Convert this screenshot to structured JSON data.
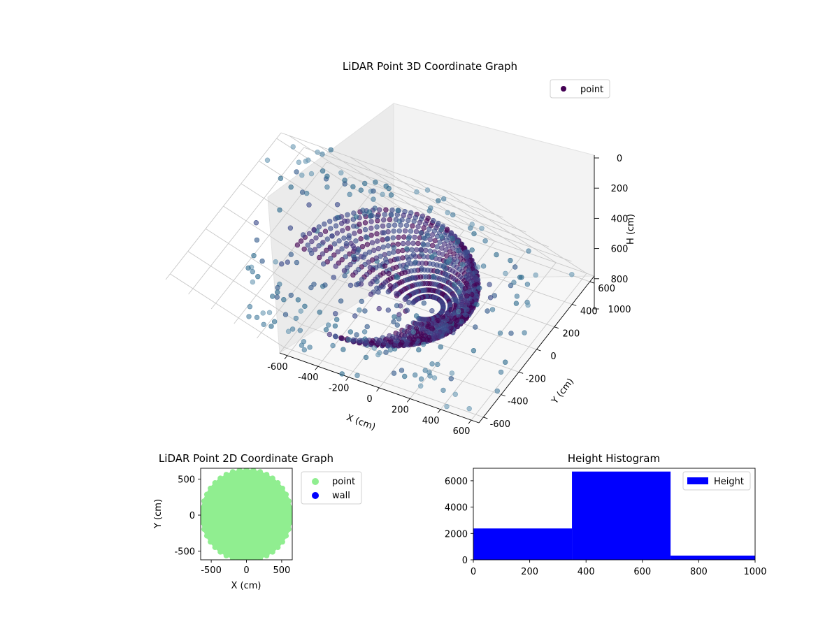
{
  "chart_data": [
    {
      "type": "scatter",
      "projection": "3d",
      "title": "LiDAR Point 3D Coordinate Graph",
      "xlabel": "X (cm)",
      "ylabel": "Y (cm)",
      "zlabel": "H (cm)",
      "xlim": [
        -650,
        650
      ],
      "ylim": [
        -650,
        650
      ],
      "zlim": [
        1000,
        0
      ],
      "z_inverted": true,
      "xticks": [
        "-600",
        "-400",
        "-200",
        "0",
        "200",
        "400",
        "600"
      ],
      "yticks": [
        "-600",
        "-400",
        "-200",
        "0",
        "200",
        "400",
        "600"
      ],
      "zticks": [
        "0",
        "200",
        "400",
        "600",
        "800",
        "1000"
      ],
      "grid": true,
      "colormap": "viridis (by distance)",
      "legend": {
        "position": "top-right",
        "entries": [
          {
            "label": "point",
            "color": "#440154"
          }
        ]
      },
      "series": [
        {
          "name": "point",
          "shape": "spherical sweep of points",
          "azimuth_range_deg": [
            -90,
            180
          ],
          "radius_cm": 560,
          "height_range_cm": [
            0,
            1000
          ],
          "approx_count": 9300
        }
      ]
    },
    {
      "type": "scatter",
      "title": "LiDAR Point 2D Coordinate Graph",
      "xlabel": "X (cm)",
      "ylabel": "Y (cm)",
      "xlim": [
        -650,
        650
      ],
      "ylim": [
        -620,
        650
      ],
      "xticks": [
        "-500",
        "0",
        "500"
      ],
      "yticks": [
        "-500",
        "0",
        "500"
      ],
      "legend": {
        "position": "outside-right",
        "entries": [
          {
            "label": "point",
            "color": "#90ee90"
          },
          {
            "label": "wall",
            "color": "#0000ff"
          }
        ]
      },
      "series": [
        {
          "name": "point",
          "color": "#90ee90",
          "shape": "filled disc",
          "radius_cm": 650
        },
        {
          "name": "wall",
          "color": "#0000ff",
          "count": 0
        }
      ]
    },
    {
      "type": "bar",
      "subtype": "histogram",
      "title": "Height Histogram",
      "xlabel": "",
      "ylabel": "",
      "xlim": [
        0,
        1000
      ],
      "ylim": [
        0,
        6950
      ],
      "xticks": [
        "0",
        "200",
        "400",
        "600",
        "800",
        "1000"
      ],
      "yticks": [
        "0",
        "2000",
        "4000",
        "6000"
      ],
      "legend": {
        "position": "top-right",
        "entries": [
          {
            "label": "Height",
            "color": "#0000ff"
          }
        ]
      },
      "bins": [
        {
          "start": 0,
          "end": 350,
          "count": 2380
        },
        {
          "start": 350,
          "end": 700,
          "count": 6700
        },
        {
          "start": 700,
          "end": 1050,
          "count": 320
        }
      ],
      "series": [
        {
          "name": "Height",
          "color": "#0000ff",
          "values": [
            2380,
            6700,
            320
          ]
        }
      ]
    }
  ]
}
